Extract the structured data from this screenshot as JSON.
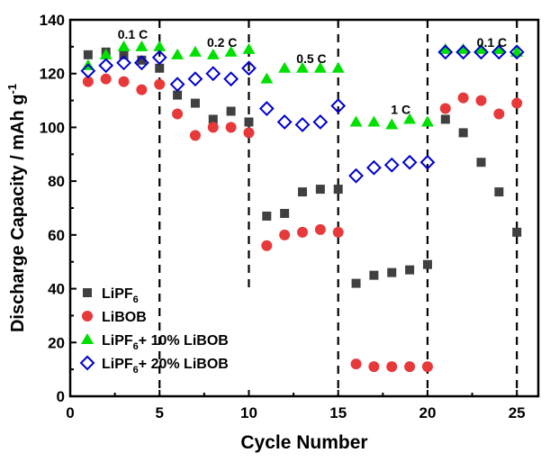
{
  "chart_data": {
    "type": "scatter",
    "title": "",
    "xlabel": "Cycle Number",
    "ylabel": "Discharge Capacity / mAh g",
    "ylabel_sup": "-1",
    "xlim": [
      0,
      26.2
    ],
    "ylim": [
      0,
      140
    ],
    "xticks": [
      0,
      5,
      10,
      15,
      20,
      25
    ],
    "yticks": [
      0,
      20,
      40,
      60,
      80,
      100,
      120,
      140
    ],
    "grid": false,
    "legend_placement": "bottom-left",
    "x": [
      1,
      2,
      3,
      4,
      5,
      6,
      7,
      8,
      9,
      10,
      11,
      12,
      13,
      14,
      15,
      16,
      17,
      18,
      19,
      20,
      21,
      22,
      23,
      24,
      25
    ],
    "series": [
      {
        "name": "LiPF6",
        "label_main": "LiPF",
        "label_sub": "6",
        "label_rest": "",
        "marker": "square",
        "color": "#404040",
        "values": [
          127,
          128,
          127,
          125,
          122,
          112,
          109,
          103,
          106,
          102,
          67,
          68,
          76,
          77,
          77,
          42,
          45,
          46,
          47,
          49,
          103,
          98,
          87,
          76,
          61
        ]
      },
      {
        "name": "LiBOB",
        "label_main": "LiBOB",
        "label_sub": "",
        "label_rest": "",
        "marker": "circle",
        "color": "#e8393a",
        "values": [
          117,
          118,
          117,
          114,
          116,
          105,
          97,
          100,
          100,
          98,
          56,
          60,
          61,
          62,
          61,
          12,
          11,
          11,
          11,
          11,
          107,
          111,
          110,
          105,
          109
        ]
      },
      {
        "name": "LiPF6+ 10%  LiBOB",
        "label_main": "LiPF",
        "label_sub": "6",
        "label_rest": "+ 10%  LiBOB",
        "marker": "triangle",
        "color": "#00e000",
        "values": [
          123,
          127,
          130,
          130,
          130,
          127,
          128,
          127,
          128,
          129,
          118,
          122,
          122,
          122,
          122,
          102,
          102,
          101,
          103,
          102,
          129,
          129,
          129,
          129,
          128
        ]
      },
      {
        "name": "LiPF6+ 20%  LiBOB",
        "label_main": "LiPF",
        "label_sub": "6",
        "label_rest": "+ 20%  LiBOB",
        "marker": "diamond-open",
        "color": "#0000d0",
        "values": [
          121,
          123,
          124,
          124,
          126,
          116,
          118,
          120,
          118,
          122,
          107,
          102,
          101,
          102,
          108,
          82,
          85,
          86,
          87,
          87,
          128,
          128,
          128,
          128,
          128
        ]
      }
    ],
    "dividers": [
      5,
      10,
      15,
      20,
      25
    ],
    "annotations": [
      {
        "text": "0.1 C",
        "x": 3.5,
        "y": 133
      },
      {
        "text": "0.2 C",
        "x": 8.5,
        "y": 130
      },
      {
        "text": "0.5 C",
        "x": 13.5,
        "y": 124
      },
      {
        "text": "1 C",
        "x": 18.5,
        "y": 105
      },
      {
        "text": "0.1 C",
        "x": 23.6,
        "y": 130
      }
    ]
  }
}
